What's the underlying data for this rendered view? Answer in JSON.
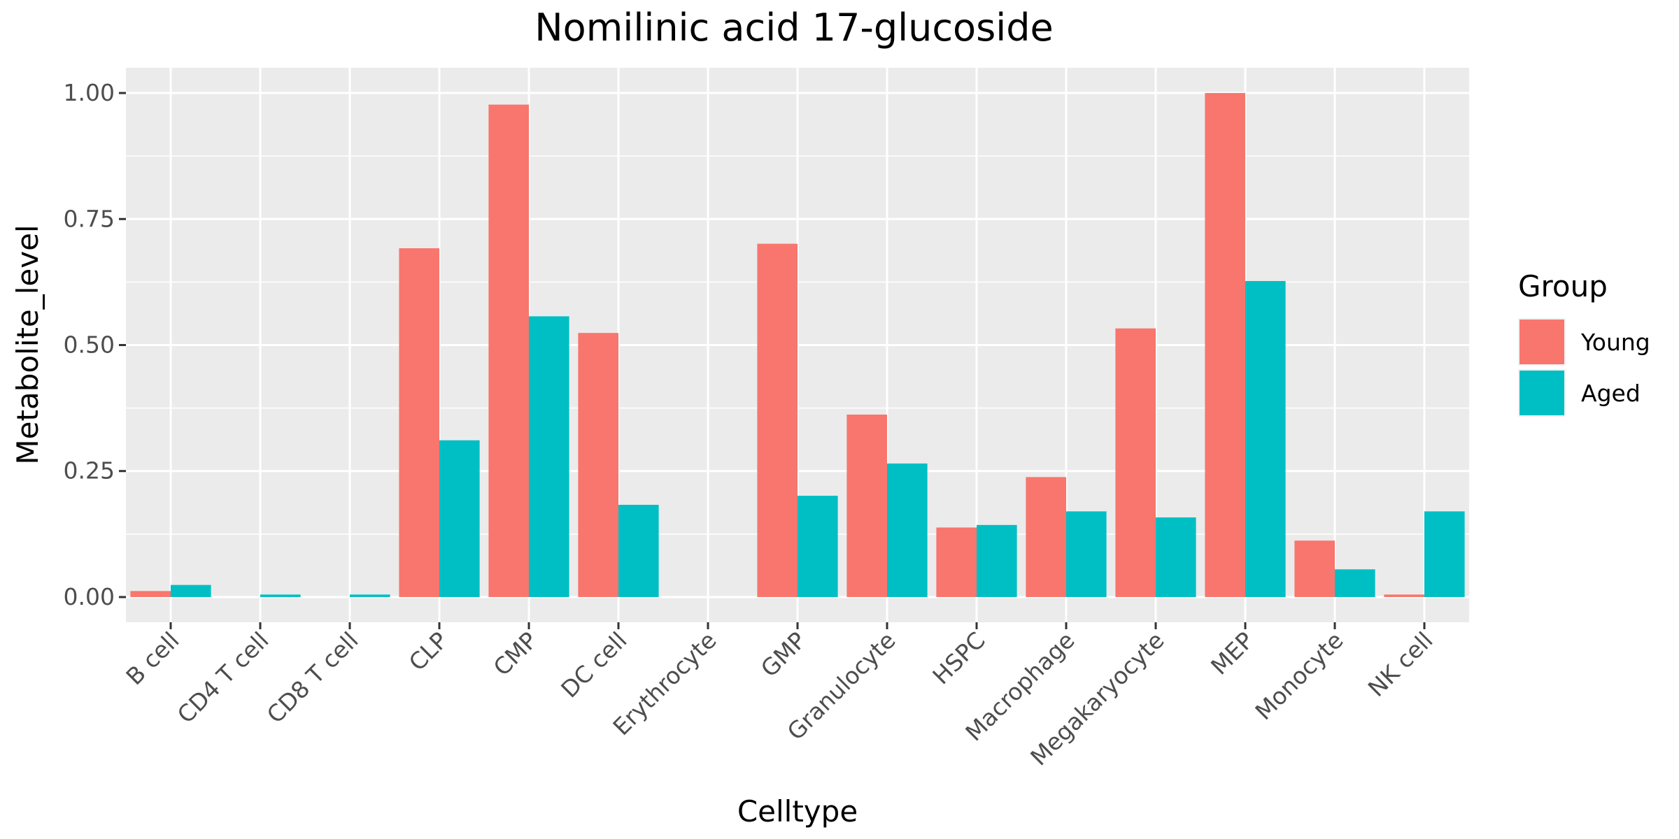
{
  "chart_data": {
    "type": "bar",
    "title": "Nomilinic acid 17-glucoside",
    "xlabel": "Celltype",
    "ylabel": "Metabolite_level",
    "ylim": [
      -0.05,
      1.05
    ],
    "yticks": [
      0.0,
      0.25,
      0.5,
      0.75,
      1.0
    ],
    "ytick_labels": [
      "0.00",
      "0.25",
      "0.50",
      "0.75",
      "1.00"
    ],
    "grid": true,
    "legend_position": "right",
    "categories": [
      "B cell",
      "CD4 T cell",
      "CD8 T cell",
      "CLP",
      "CMP",
      "DC cell",
      "Erythrocyte",
      "GMP",
      "Granulocyte",
      "HSPC",
      "Macrophage",
      "Megakaryocyte",
      "MEP",
      "Monocyte",
      "NK cell"
    ],
    "series": [
      {
        "name": "Young",
        "color": "#F8766D",
        "values": [
          0.012,
          0.0,
          0.0,
          0.692,
          0.977,
          0.524,
          0.0,
          0.701,
          0.362,
          0.138,
          0.238,
          0.533,
          1.0,
          0.112,
          0.005
        ]
      },
      {
        "name": "Aged",
        "color": "#00BFC4",
        "values": [
          0.024,
          0.005,
          0.005,
          0.311,
          0.557,
          0.183,
          0.0,
          0.201,
          0.265,
          0.143,
          0.17,
          0.158,
          0.627,
          0.055,
          0.17
        ]
      }
    ],
    "legend": {
      "title": "Group"
    },
    "panel_background": "#EBEBEB",
    "grid_color": "#FFFFFF"
  }
}
